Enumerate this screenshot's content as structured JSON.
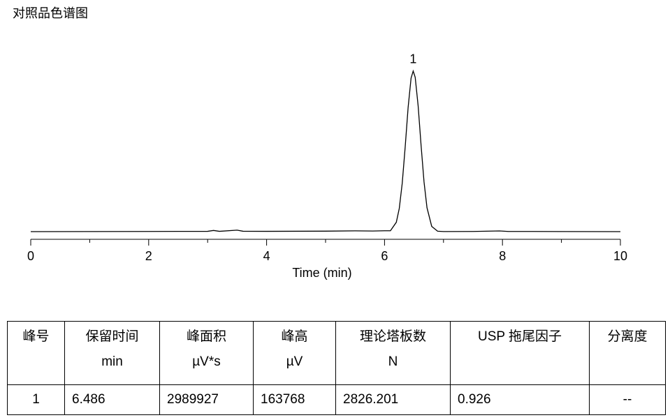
{
  "chart_data": {
    "type": "line",
    "title": "对照品色谱图",
    "xlabel": "Time (min)",
    "x": [
      0,
      1,
      2,
      3,
      3.1,
      3.2,
      3.5,
      3.6,
      4,
      5,
      5.5,
      5.8,
      6.0,
      6.1,
      6.2,
      6.25,
      6.3,
      6.35,
      6.4,
      6.45,
      6.486,
      6.52,
      6.57,
      6.62,
      6.67,
      6.72,
      6.8,
      6.9,
      7.0,
      7.5,
      7.95,
      8.1,
      9,
      10
    ],
    "values": [
      0,
      100,
      200,
      300,
      1200,
      300,
      1500,
      400,
      300,
      500,
      800,
      600,
      900,
      930,
      9570,
      23680,
      49290,
      86150,
      126600,
      156560,
      163768,
      157380,
      128230,
      87780,
      50540,
      24400,
      5360,
      430,
      100,
      200,
      700,
      200,
      100,
      0
    ],
    "color": "#000000",
    "xlim": [
      0,
      10
    ],
    "xticks": [
      0,
      2,
      4,
      6,
      8,
      10
    ],
    "minor_xticks": [
      1,
      3,
      5,
      7,
      9
    ],
    "ylim": [
      0,
      180000
    ],
    "annotations": [
      {
        "x": 6.486,
        "y": 163768,
        "text": "1"
      }
    ]
  },
  "table": {
    "columns": [
      {
        "name": "峰号"
      },
      {
        "name": "保留时间",
        "unit": "min"
      },
      {
        "name": "峰面积",
        "unit": "µV*s"
      },
      {
        "name": "峰高",
        "unit": "µV"
      },
      {
        "name": "理论塔板数",
        "unit": "N"
      },
      {
        "name": "USP 拖尾因子"
      },
      {
        "name": "分离度"
      }
    ],
    "rows": [
      [
        1,
        6.486,
        2989927,
        163768,
        2826.201,
        0.926,
        "--"
      ]
    ]
  }
}
